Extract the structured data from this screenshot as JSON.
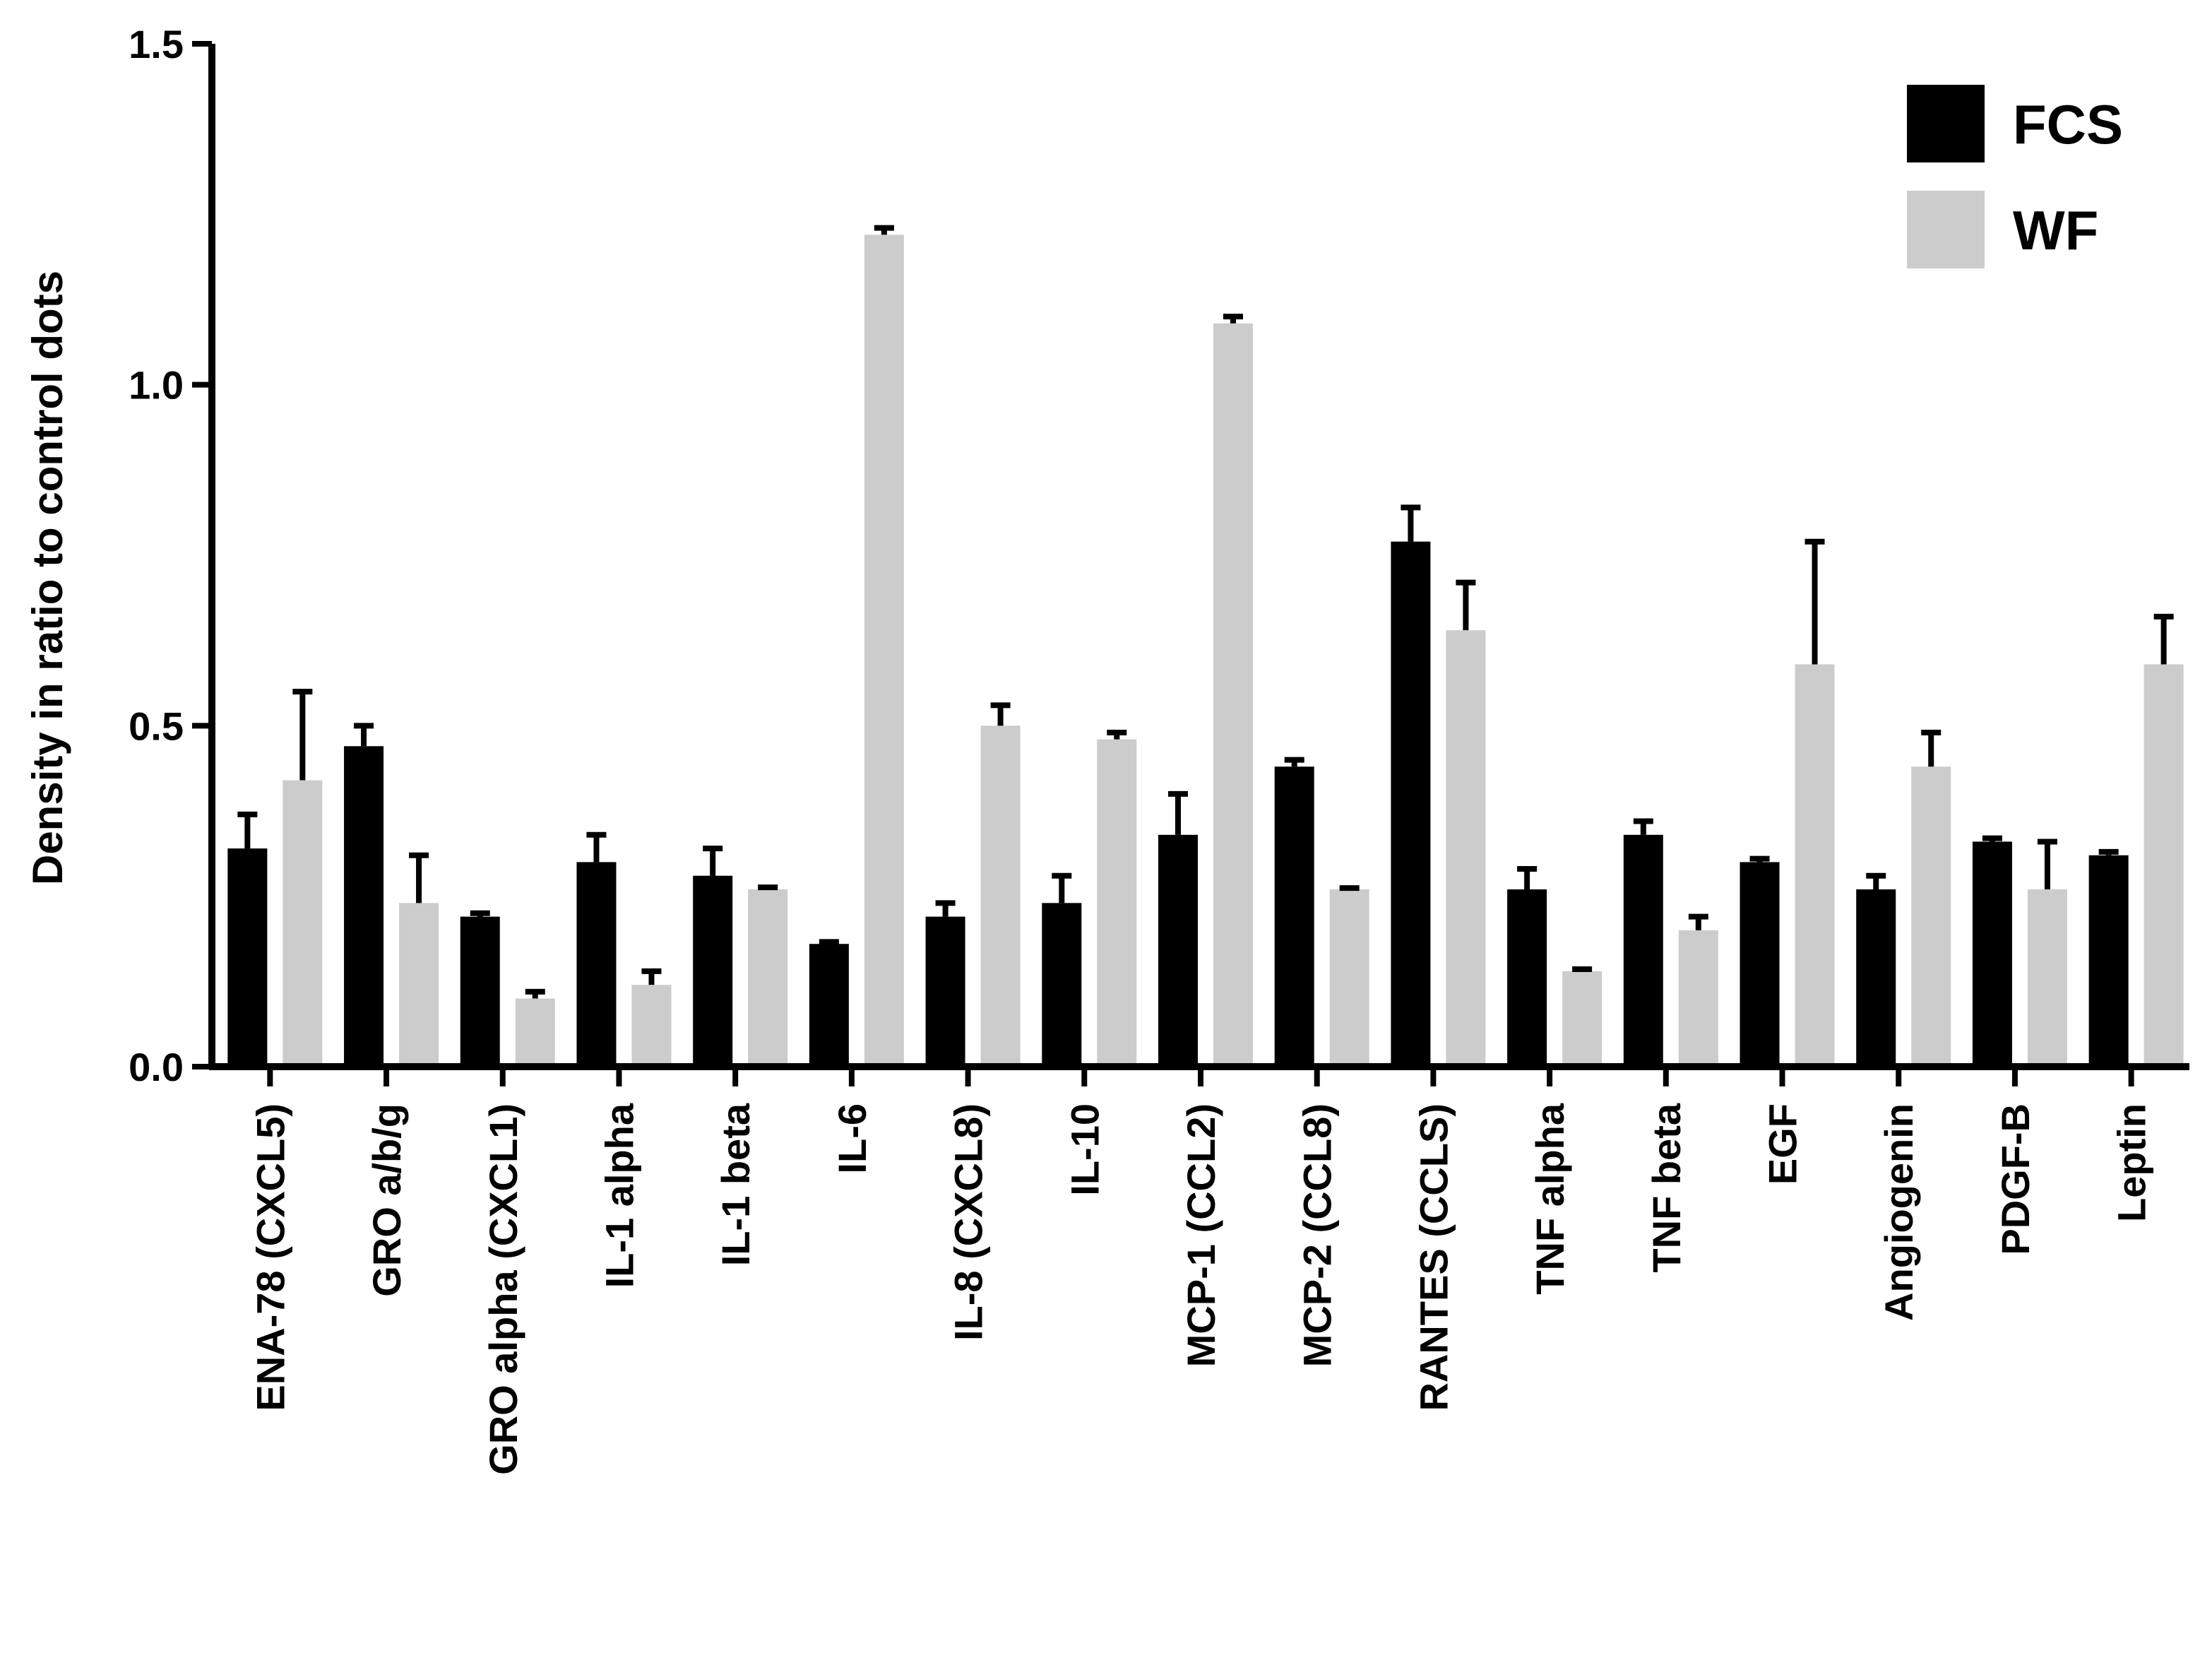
{
  "chart_data": {
    "type": "bar",
    "title": "",
    "xlabel": "",
    "ylabel": "Density in ratio to control dots",
    "ylim": [
      0,
      1.5
    ],
    "yticks": [
      {
        "value": 0.0,
        "label": "0.0"
      },
      {
        "value": 0.5,
        "label": "0.5"
      },
      {
        "value": 1.0,
        "label": "1.0"
      },
      {
        "value": 1.5,
        "label": "1.5"
      }
    ],
    "grid": false,
    "legend_position": "top-right",
    "categories": [
      "ENA-78 (CXCL5)",
      "GRO a/b/g",
      "GRO alpha (CXCL1)",
      "IL-1 alpha",
      "IL-1 beta",
      "IL-6",
      "IL-8 (CXCL8)",
      "IL-10",
      "MCP-1 (CCL2)",
      "MCP-2 (CCL8)",
      "RANTES (CCLS)",
      "TNF alpha",
      "TNF beta",
      "EGF",
      "Angiogenin",
      "PDGF-B",
      "Leptin"
    ],
    "series": [
      {
        "name": "FCS",
        "color": "#000000",
        "values": [
          0.32,
          0.47,
          0.22,
          0.3,
          0.28,
          0.18,
          0.22,
          0.24,
          0.34,
          0.44,
          0.77,
          0.26,
          0.34,
          0.3,
          0.26,
          0.33,
          0.31
        ],
        "errors": [
          0.05,
          0.03,
          0.005,
          0.04,
          0.04,
          0.003,
          0.02,
          0.04,
          0.06,
          0.01,
          0.05,
          0.03,
          0.02,
          0.005,
          0.02,
          0.005,
          0.005
        ]
      },
      {
        "name": "WF",
        "color": "#cccccc",
        "values": [
          0.42,
          0.24,
          0.1,
          0.12,
          0.26,
          1.22,
          0.5,
          0.48,
          1.09,
          0.26,
          0.64,
          0.14,
          0.2,
          0.59,
          0.44,
          0.26,
          0.59
        ],
        "errors": [
          0.13,
          0.07,
          0.01,
          0.02,
          0.003,
          0.01,
          0.03,
          0.01,
          0.01,
          0.002,
          0.07,
          0.003,
          0.02,
          0.18,
          0.05,
          0.07,
          0.07
        ]
      }
    ]
  }
}
